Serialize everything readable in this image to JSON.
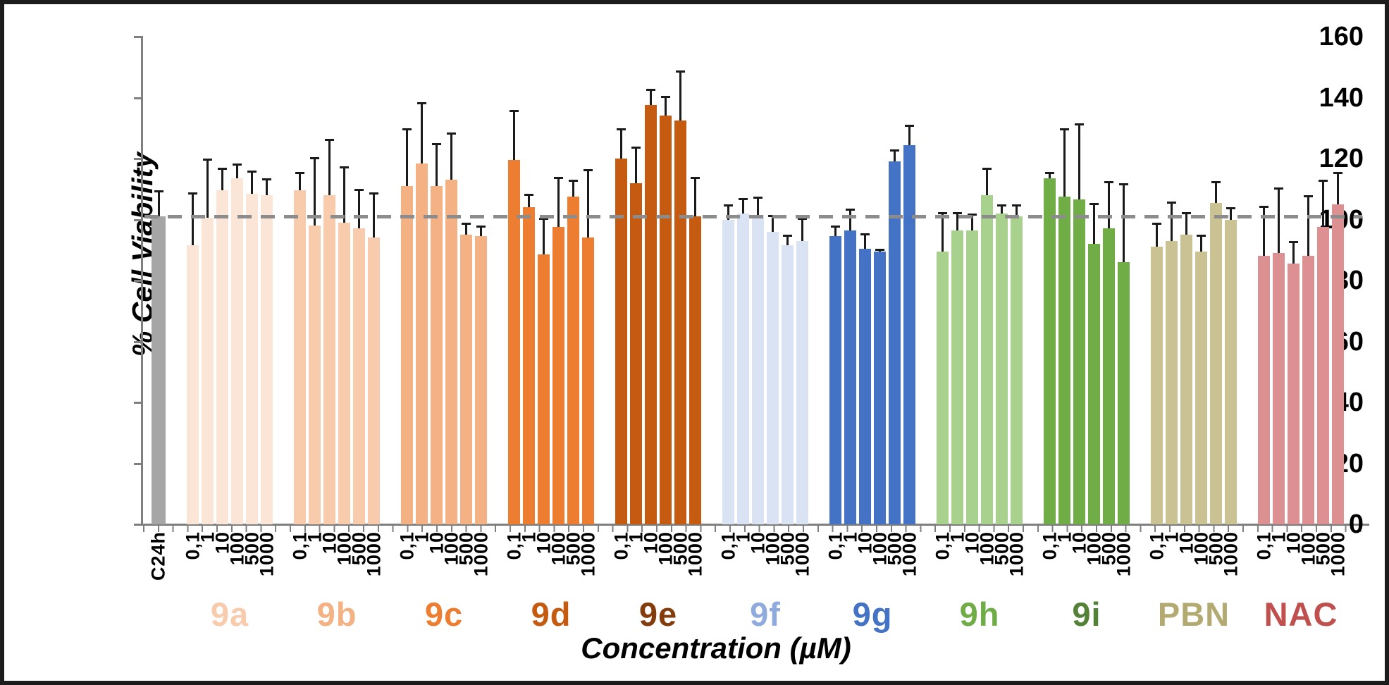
{
  "chart_data": {
    "type": "bar",
    "title": "",
    "ylabel": "% Cell Viability",
    "xlabel": "Concentration (µM)",
    "ylim": [
      0,
      160
    ],
    "yticks": [
      0,
      20,
      40,
      60,
      80,
      100,
      120,
      140,
      160
    ],
    "grid": false,
    "legend": "none",
    "reference_line": {
      "value": 101,
      "style": "dashed",
      "color": "#8c8c8c"
    },
    "concentration_labels": [
      "0,1",
      "1",
      "10",
      "100",
      "500",
      "1000"
    ],
    "control": {
      "label": "C24h",
      "value": 101,
      "error_up": 8.5,
      "color": "#a6a6a6"
    },
    "groups": [
      {
        "name": "9a",
        "bar_color": "#fbe5d6",
        "label_color": "#f8cbad",
        "values": [
          91.5,
          100.5,
          109.5,
          113.5,
          108.5,
          108
        ],
        "errors_up": [
          17.5,
          19.5,
          7.5,
          5,
          7.5,
          5.5
        ]
      },
      {
        "name": "9b",
        "bar_color": "#f8cbad",
        "label_color": "#f4b183",
        "values": [
          109.5,
          98,
          108,
          99,
          97,
          94
        ],
        "errors_up": [
          6,
          22.5,
          18.5,
          18.5,
          13,
          15
        ]
      },
      {
        "name": "9c",
        "bar_color": "#f4b183",
        "label_color": "#ed7d31",
        "values": [
          111,
          118.5,
          111,
          113,
          95,
          94.5
        ],
        "errors_up": [
          19,
          20,
          14,
          15.5,
          4,
          3.5
        ]
      },
      {
        "name": "9d",
        "bar_color": "#ed7d31",
        "label_color": "#c55a11",
        "values": [
          119.5,
          104,
          88.5,
          97.5,
          107.5,
          94
        ],
        "errors_up": [
          16.5,
          4.5,
          12,
          16.5,
          5.5,
          22.5
        ]
      },
      {
        "name": "9e",
        "bar_color": "#c55a11",
        "label_color": "#843c0c",
        "values": [
          120,
          112,
          137.5,
          134,
          132.5,
          101
        ],
        "errors_up": [
          10,
          12,
          5.5,
          6.5,
          16.5,
          13
        ]
      },
      {
        "name": "9f",
        "bar_color": "#dae3f3",
        "label_color": "#8faadc",
        "values": [
          100,
          102,
          101.5,
          96,
          91.5,
          93
        ],
        "errors_up": [
          5,
          5,
          6,
          5.5,
          3.5,
          7.5
        ]
      },
      {
        "name": "9g",
        "bar_color": "#4472c4",
        "label_color": "#4472c4",
        "values": [
          94.5,
          96.5,
          90.5,
          89.5,
          119,
          124.5
        ],
        "errors_up": [
          3.5,
          7,
          5,
          1,
          4,
          6.5
        ]
      },
      {
        "name": "9h",
        "bar_color": "#a9d18e",
        "label_color": "#70ad47",
        "values": [
          89.5,
          96.5,
          96.5,
          108,
          102,
          101
        ],
        "errors_up": [
          13,
          6,
          5.5,
          9,
          3,
          4
        ]
      },
      {
        "name": "9i",
        "bar_color": "#70ad47",
        "label_color": "#538135",
        "values": [
          113.5,
          107.5,
          106.5,
          92,
          97,
          86
        ],
        "errors_up": [
          2,
          22.5,
          25,
          13.5,
          15.5,
          26
        ]
      },
      {
        "name": "PBN",
        "bar_color": "#cbc294",
        "label_color": "#b3aa72",
        "values": [
          91,
          93,
          95,
          89.5,
          105.5,
          100
        ],
        "errors_up": [
          8,
          13,
          7.5,
          5.5,
          7,
          4
        ]
      },
      {
        "name": "NAC",
        "bar_color": "#dd9091",
        "label_color": "#c0504d",
        "values": [
          88,
          89,
          85.5,
          88,
          97.5,
          105
        ],
        "errors_up": [
          16.5,
          21.5,
          7.5,
          20,
          15.5,
          10.5
        ]
      }
    ]
  }
}
